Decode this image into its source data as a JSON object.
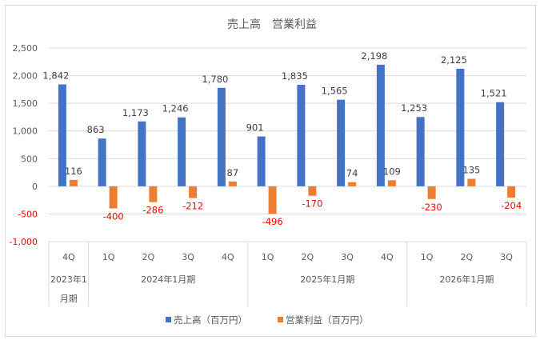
{
  "chart_data": {
    "type": "bar",
    "title": "売上高　営業利益",
    "categories": [
      "4Q",
      "1Q",
      "2Q",
      "3Q",
      "4Q",
      "1Q",
      "2Q",
      "3Q",
      "4Q",
      "1Q",
      "2Q",
      "3Q"
    ],
    "category_groups": [
      {
        "label_lines": [
          "2023年1",
          "月期"
        ],
        "count": 1
      },
      {
        "label_lines": [
          "2024年1月期"
        ],
        "count": 4
      },
      {
        "label_lines": [
          "2025年1月期"
        ],
        "count": 4
      },
      {
        "label_lines": [
          "2026年1月期"
        ],
        "count": 3
      }
    ],
    "series": [
      {
        "name": "売上高（百万円）",
        "color": "#4472c4",
        "values": [
          1842,
          863,
          1173,
          1246,
          1780,
          901,
          1835,
          1565,
          2198,
          1253,
          2125,
          1521
        ],
        "labels": [
          "1,842",
          "863",
          "1,173",
          "1,246",
          "1,780",
          "901",
          "1,835",
          "1,565",
          "2,198",
          "1,253",
          "2,125",
          "1,521"
        ]
      },
      {
        "name": "営業利益（百万円）",
        "color": "#ed7d31",
        "values": [
          116,
          -400,
          -286,
          -212,
          87,
          -496,
          -170,
          74,
          109,
          -230,
          135,
          -204
        ],
        "labels": [
          "116",
          "-400",
          "-286",
          "-212",
          "87",
          "-496",
          "-170",
          "74",
          "109",
          "-230",
          "135",
          "-204"
        ]
      }
    ],
    "ylim": [
      -1000,
      2500
    ],
    "yticks": [
      2500,
      2000,
      1500,
      1000,
      500,
      0,
      -500,
      -1000
    ],
    "ytick_labels": [
      "2,500",
      "2,000",
      "1,500",
      "1,000",
      "500",
      "0",
      "-500",
      "-1,000"
    ],
    "negative_color": "#ff0000",
    "grid": true,
    "legend": "bottom"
  }
}
